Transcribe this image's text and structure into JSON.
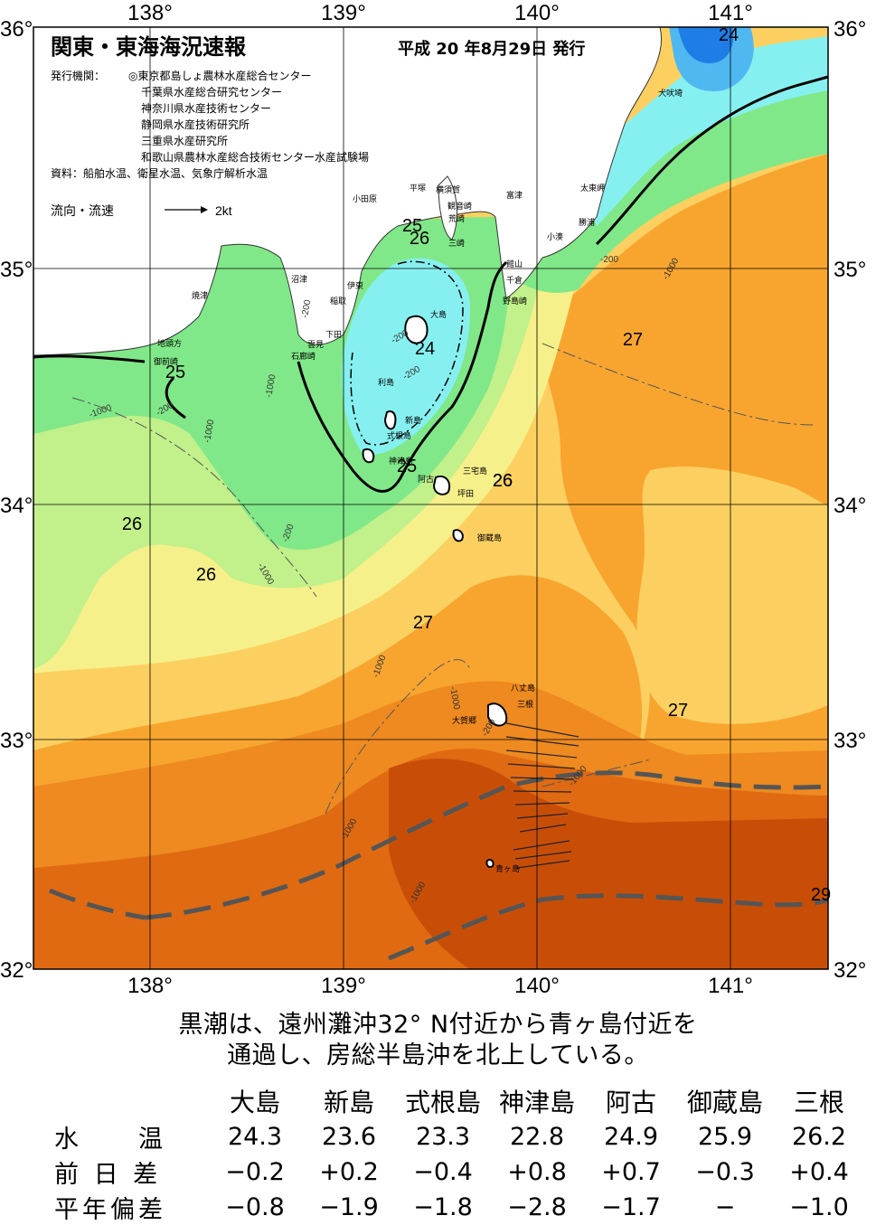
{
  "title": "関東・東海海況速報",
  "issue_date": "平成 20 年8月29日 発行",
  "publisher_label": "発行機関：",
  "publishers": [
    "◎東京都島しょ農林水産総合センター",
    "千葉県水産総合研究センター",
    "神奈川県水産技術センター",
    "静岡県水産技術研究所",
    "三重県水産研究所",
    "和歌山県農林水産総合技術センター水産試験場"
  ],
  "sources": "資料：船舶水温、衛星水温、気象庁解析水温",
  "flow_legend": {
    "label": "流向・流速",
    "scale": "2kt"
  },
  "longitude_labels": [
    "138°",
    "139°",
    "140°",
    "141°"
  ],
  "latitude_labels": [
    "36°",
    "35°",
    "34°",
    "33°",
    "32°"
  ],
  "isotherm_labels": [
    "24",
    "25",
    "26",
    "26",
    "25",
    "24",
    "25",
    "26",
    "26",
    "26",
    "27",
    "27",
    "27",
    "29"
  ],
  "depth_labels": [
    "-200",
    "-1000"
  ],
  "places": [
    "犬吠埼",
    "太東岬",
    "勝浦",
    "小湊",
    "富津",
    "横須賀",
    "観音崎",
    "荒崎",
    "三崎",
    "平塚",
    "小田原",
    "館山",
    "千倉",
    "野島崎",
    "大島",
    "伊東",
    "稲取",
    "下田",
    "雲見",
    "石廊崎",
    "沼津",
    "焼津",
    "地頭方",
    "御前崎",
    "利島",
    "新島",
    "式根島",
    "神津島",
    "三宅島",
    "阿古",
    "坪田",
    "御蔵島",
    "八丈島",
    "三根",
    "大賀郷",
    "青ヶ島"
  ],
  "caption": [
    "黒潮は、遠州灘沖32°  N付近から青ヶ島付近を",
    "通過し、房総半島沖を北上している。"
  ],
  "table": {
    "stations": [
      "大島",
      "新島",
      "式根島",
      "神津島",
      "阿古",
      "御蔵島",
      "三根"
    ],
    "rows": [
      {
        "label": "水　　温",
        "values": [
          "24.3",
          "23.6",
          "23.3",
          "22.8",
          "24.9",
          "25.9",
          "26.2"
        ]
      },
      {
        "label": "前 日 差",
        "values": [
          "−0.2",
          "+0.2",
          "−0.4",
          "+0.8",
          "+0.7",
          "−0.3",
          "+0.4"
        ]
      },
      {
        "label": "平年偏差",
        "values": [
          "−0.8",
          "−1.9",
          "−1.8",
          "−2.8",
          "−1.7",
          "−",
          "−1.0"
        ]
      }
    ]
  },
  "colors": {
    "sst_22": "#1e7de6",
    "sst_23": "#4fb8f0",
    "sst_24": "#86f0f0",
    "sst_25": "#80e888",
    "sst_26": "#c2f08a",
    "sst_26_5": "#f6f08a",
    "sst_27": "#fcd060",
    "sst_27_5": "#f8a530",
    "sst_28": "#ee8a20",
    "sst_28_5": "#e06a12",
    "sst_29": "#c84e08",
    "land": "#ffffff"
  }
}
